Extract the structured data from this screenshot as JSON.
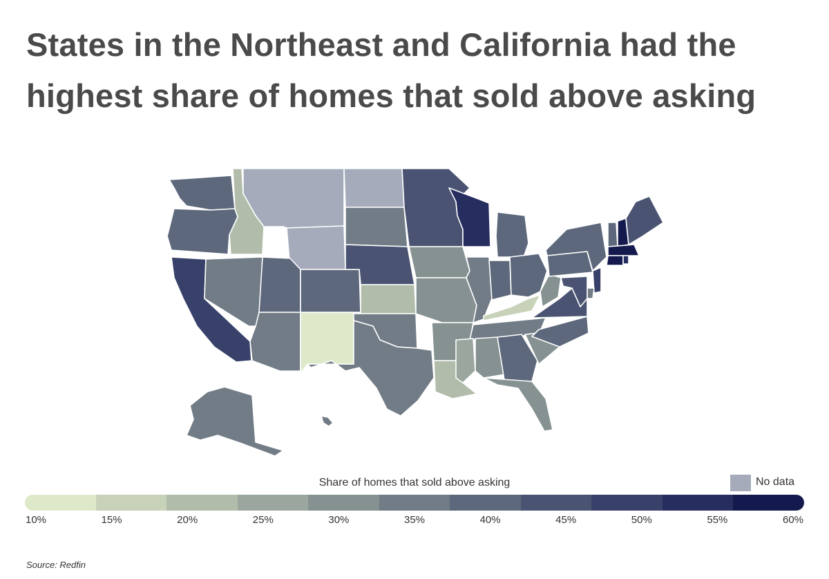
{
  "title_lines": [
    "States in the Northeast and California had the",
    "highest share of homes that sold above asking"
  ],
  "chart_data": {
    "type": "choropleth",
    "title": "States in the Northeast and California had the highest share of homes that sold above asking",
    "legend_title": "Share of homes that sold above asking",
    "no_data_label": "No data",
    "no_data_color": "#a5abbb",
    "scale_ticks": [
      "10%",
      "15%",
      "20%",
      "25%",
      "30%",
      "35%",
      "40%",
      "45%",
      "50%",
      "55%",
      "60%"
    ],
    "scale_colors": [
      "#dde9c9",
      "#c7d2b8",
      "#b1bcaa",
      "#9ba79e",
      "#869191",
      "#717c86",
      "#5d687c",
      "#4a5472",
      "#384169",
      "#262d5f",
      "#141a4e"
    ],
    "states": [
      {
        "name": "Washington",
        "bin": 6
      },
      {
        "name": "Oregon",
        "bin": 6
      },
      {
        "name": "California",
        "bin": 8
      },
      {
        "name": "Idaho",
        "bin": 2
      },
      {
        "name": "Nevada",
        "bin": 5
      },
      {
        "name": "Montana",
        "bin": null
      },
      {
        "name": "Wyoming",
        "bin": null
      },
      {
        "name": "Utah",
        "bin": 6
      },
      {
        "name": "Arizona",
        "bin": 5
      },
      {
        "name": "Colorado",
        "bin": 6
      },
      {
        "name": "New Mexico",
        "bin": 0
      },
      {
        "name": "North Dakota",
        "bin": null
      },
      {
        "name": "South Dakota",
        "bin": 5
      },
      {
        "name": "Nebraska",
        "bin": 7
      },
      {
        "name": "Kansas",
        "bin": 2
      },
      {
        "name": "Oklahoma",
        "bin": 5
      },
      {
        "name": "Texas",
        "bin": 5
      },
      {
        "name": "Minnesota",
        "bin": 7
      },
      {
        "name": "Iowa",
        "bin": 4
      },
      {
        "name": "Missouri",
        "bin": 4
      },
      {
        "name": "Arkansas",
        "bin": 4
      },
      {
        "name": "Louisiana",
        "bin": 2
      },
      {
        "name": "Wisconsin",
        "bin": 9
      },
      {
        "name": "Illinois",
        "bin": 5
      },
      {
        "name": "Michigan",
        "bin": 6
      },
      {
        "name": "Indiana",
        "bin": 6
      },
      {
        "name": "Ohio",
        "bin": 6
      },
      {
        "name": "Kentucky",
        "bin": 1
      },
      {
        "name": "Tennessee",
        "bin": 5
      },
      {
        "name": "Mississippi",
        "bin": 3
      },
      {
        "name": "Alabama",
        "bin": 4
      },
      {
        "name": "Georgia",
        "bin": 6
      },
      {
        "name": "Florida",
        "bin": 4
      },
      {
        "name": "South Carolina",
        "bin": 4
      },
      {
        "name": "North Carolina",
        "bin": 6
      },
      {
        "name": "Virginia",
        "bin": 7
      },
      {
        "name": "West Virginia",
        "bin": 4
      },
      {
        "name": "Pennsylvania",
        "bin": 6
      },
      {
        "name": "New York",
        "bin": 6
      },
      {
        "name": "Vermont",
        "bin": 6
      },
      {
        "name": "New Hampshire",
        "bin": 10
      },
      {
        "name": "Maine",
        "bin": 7
      },
      {
        "name": "Massachusetts",
        "bin": 10
      },
      {
        "name": "Connecticut",
        "bin": 10
      },
      {
        "name": "Rhode Island",
        "bin": 9
      },
      {
        "name": "New Jersey",
        "bin": 8
      },
      {
        "name": "Delaware",
        "bin": 5
      },
      {
        "name": "Maryland",
        "bin": 7
      },
      {
        "name": "Alaska",
        "bin": 5
      },
      {
        "name": "Hawaii",
        "bin": 5
      }
    ]
  },
  "source": "Source: Redfin"
}
